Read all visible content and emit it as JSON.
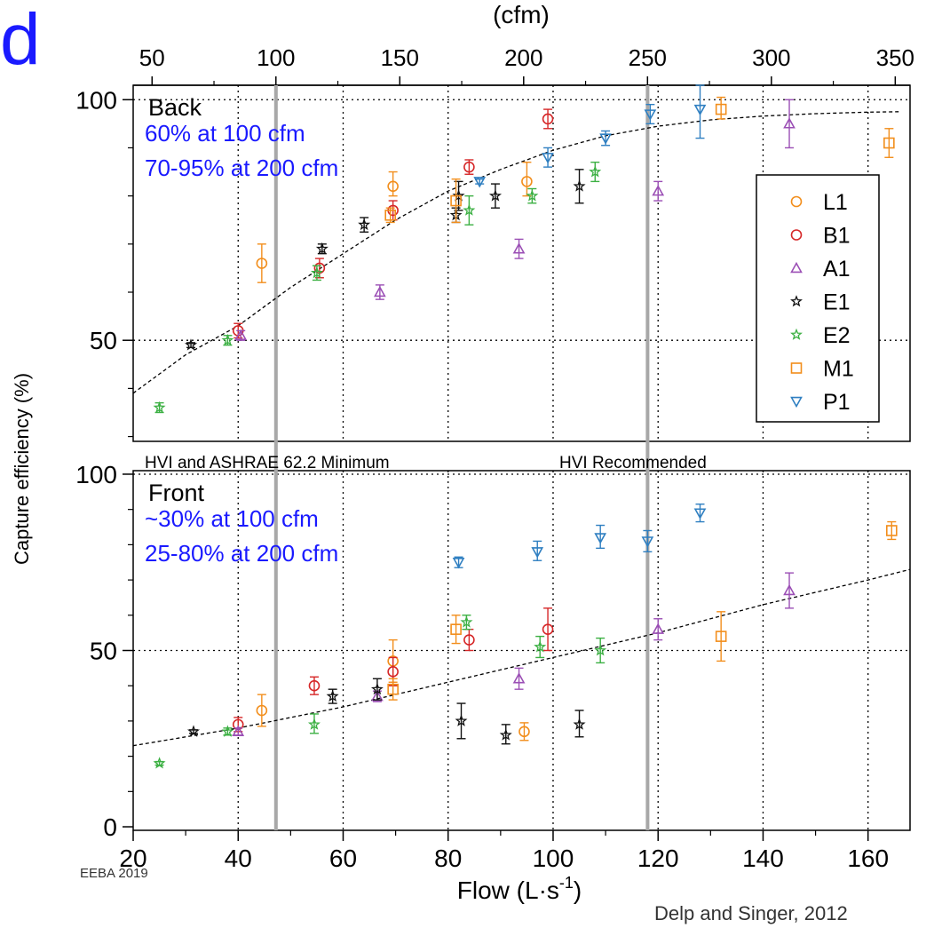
{
  "slide": {
    "letter": "d",
    "credit_left": "EEBA 2019",
    "credit_right": "Delp and Singer, 2012"
  },
  "chart_data": {
    "type": "scatter",
    "top_axis_label": "(cfm)",
    "top_ticks": [
      "50",
      "100",
      "150",
      "200",
      "250",
      "300",
      "350"
    ],
    "top_tick_values": [
      50,
      100,
      150,
      200,
      250,
      300,
      350
    ],
    "xlabel_main": "Flow (L",
    "xlabel_dot": "·",
    "xlabel_s": "s",
    "xlabel_exp": "-1",
    "xlabel_close": ")",
    "ylabel": "Capture efficiency (%)",
    "x_ticks": [
      "20",
      "40",
      "60",
      "80",
      "100",
      "120",
      "140",
      "160"
    ],
    "x_tick_values": [
      20,
      40,
      60,
      80,
      100,
      120,
      140,
      160
    ],
    "xlim": [
      20,
      168
    ],
    "vlines": [
      {
        "x": 47.2,
        "label": "HVI and ASHRAE 62.2 Minimum"
      },
      {
        "x": 118,
        "label": "HVI Recommended"
      }
    ],
    "colors": {
      "L1": "#f28e1c",
      "B1": "#d62728",
      "A1": "#9b4fb5",
      "E1": "#111111",
      "E2": "#3cb043",
      "M1": "#f28e1c",
      "P1": "#2f7fc1"
    },
    "legend": [
      {
        "name": "L1",
        "marker": "circle"
      },
      {
        "name": "B1",
        "marker": "circle"
      },
      {
        "name": "A1",
        "marker": "triangle-up"
      },
      {
        "name": "E1",
        "marker": "star"
      },
      {
        "name": "E2",
        "marker": "star"
      },
      {
        "name": "M1",
        "marker": "square"
      },
      {
        "name": "P1",
        "marker": "triangle-down"
      }
    ],
    "legend_position": "right",
    "panels": [
      {
        "title": "Back",
        "notes": [
          "60% at 100 cfm",
          "70-95% at 200 cfm"
        ],
        "y_ticks": [
          "50",
          "100"
        ],
        "y_tick_values": [
          50,
          100
        ],
        "ylim": [
          29,
          103
        ],
        "fit": [
          [
            20,
            39
          ],
          [
            30,
            47
          ],
          [
            40,
            53
          ],
          [
            50,
            61
          ],
          [
            60,
            68
          ],
          [
            70,
            75
          ],
          [
            80,
            81
          ],
          [
            90,
            85.5
          ],
          [
            100,
            89.5
          ],
          [
            110,
            92.5
          ],
          [
            120,
            94.5
          ],
          [
            130,
            95.8
          ],
          [
            140,
            96.6
          ],
          [
            150,
            97.1
          ],
          [
            160,
            97.4
          ],
          [
            166,
            97.5
          ]
        ],
        "points": [
          {
            "s": "L1",
            "x": 44.5,
            "y": 66,
            "lo": 62,
            "hi": 70
          },
          {
            "s": "L1",
            "x": 69.5,
            "y": 82,
            "lo": 80,
            "hi": 85
          },
          {
            "s": "L1",
            "x": 95,
            "y": 83,
            "lo": 80,
            "hi": 87
          },
          {
            "s": "B1",
            "x": 40,
            "y": 52,
            "lo": 50.5,
            "hi": 53.5
          },
          {
            "s": "B1",
            "x": 55.5,
            "y": 65,
            "lo": 63,
            "hi": 67
          },
          {
            "s": "B1",
            "x": 69.5,
            "y": 77,
            "lo": 75,
            "hi": 79
          },
          {
            "s": "B1",
            "x": 84,
            "y": 86,
            "lo": 84.5,
            "hi": 87.5
          },
          {
            "s": "B1",
            "x": 99,
            "y": 96,
            "lo": 94,
            "hi": 98
          },
          {
            "s": "A1",
            "x": 40.5,
            "y": 51,
            "lo": 50,
            "hi": 52
          },
          {
            "s": "A1",
            "x": 67,
            "y": 60,
            "lo": 58.5,
            "hi": 61.5
          },
          {
            "s": "A1",
            "x": 93.5,
            "y": 69,
            "lo": 67,
            "hi": 71
          },
          {
            "s": "A1",
            "x": 120,
            "y": 81,
            "lo": 79,
            "hi": 83
          },
          {
            "s": "A1",
            "x": 145,
            "y": 95,
            "lo": 90,
            "hi": 100
          },
          {
            "s": "E1",
            "x": 31,
            "y": 49,
            "lo": 48.5,
            "hi": 49.5
          },
          {
            "s": "E1",
            "x": 56,
            "y": 69,
            "lo": 68,
            "hi": 70
          },
          {
            "s": "E1",
            "x": 64,
            "y": 74,
            "lo": 72.5,
            "hi": 75.5
          },
          {
            "s": "E1",
            "x": 81.5,
            "y": 76,
            "lo": 74.5,
            "hi": 77.5
          },
          {
            "s": "E1",
            "x": 82,
            "y": 80,
            "lo": 77,
            "hi": 83
          },
          {
            "s": "E1",
            "x": 89,
            "y": 80,
            "lo": 77.5,
            "hi": 82.5
          },
          {
            "s": "E1",
            "x": 105,
            "y": 82,
            "lo": 78.5,
            "hi": 85.5
          },
          {
            "s": "E2",
            "x": 25,
            "y": 36,
            "lo": 35,
            "hi": 37
          },
          {
            "s": "E2",
            "x": 38,
            "y": 50,
            "lo": 49,
            "hi": 51
          },
          {
            "s": "E2",
            "x": 55,
            "y": 64,
            "lo": 62.5,
            "hi": 65.5
          },
          {
            "s": "E2",
            "x": 84,
            "y": 77,
            "lo": 74,
            "hi": 80
          },
          {
            "s": "E2",
            "x": 96,
            "y": 80,
            "lo": 78.5,
            "hi": 81.5
          },
          {
            "s": "E2",
            "x": 108,
            "y": 85,
            "lo": 83,
            "hi": 87
          },
          {
            "s": "M1",
            "x": 69,
            "y": 76,
            "lo": 74.5,
            "hi": 77.5
          },
          {
            "s": "M1",
            "x": 81.5,
            "y": 79,
            "lo": 74.5,
            "hi": 83.5
          },
          {
            "s": "M1",
            "x": 132,
            "y": 98,
            "lo": 96,
            "hi": 100.5
          },
          {
            "s": "M1",
            "x": 164,
            "y": 91,
            "lo": 88,
            "hi": 94
          },
          {
            "s": "P1",
            "x": 86,
            "y": 83,
            "lo": 82.5,
            "hi": 83.5
          },
          {
            "s": "P1",
            "x": 99,
            "y": 88,
            "lo": 86,
            "hi": 90
          },
          {
            "s": "P1",
            "x": 110,
            "y": 92,
            "lo": 90.5,
            "hi": 93.5
          },
          {
            "s": "P1",
            "x": 118.5,
            "y": 97,
            "lo": 95,
            "hi": 99
          },
          {
            "s": "P1",
            "x": 128,
            "y": 98,
            "lo": 92,
            "hi": 103
          }
        ]
      },
      {
        "title": "Front",
        "notes": [
          "~30% at 100 cfm",
          "25-80% at 200 cfm"
        ],
        "y_ticks": [
          "0",
          "50",
          "100"
        ],
        "y_tick_values": [
          0,
          50,
          100
        ],
        "ylim": [
          -1,
          101
        ],
        "fit": [
          [
            20,
            23
          ],
          [
            40,
            28
          ],
          [
            60,
            34
          ],
          [
            80,
            41
          ],
          [
            100,
            48
          ],
          [
            120,
            55
          ],
          [
            140,
            63
          ],
          [
            160,
            70
          ],
          [
            168,
            73
          ]
        ],
        "points": [
          {
            "s": "L1",
            "x": 44.5,
            "y": 33,
            "lo": 28.5,
            "hi": 37.5
          },
          {
            "s": "L1",
            "x": 69.5,
            "y": 47,
            "lo": 41,
            "hi": 53
          },
          {
            "s": "L1",
            "x": 94.5,
            "y": 27,
            "lo": 24.5,
            "hi": 29.5
          },
          {
            "s": "B1",
            "x": 40,
            "y": 29,
            "lo": 27,
            "hi": 31
          },
          {
            "s": "B1",
            "x": 54.5,
            "y": 40,
            "lo": 37.5,
            "hi": 42.5
          },
          {
            "s": "B1",
            "x": 69.5,
            "y": 44,
            "lo": 40,
            "hi": 48
          },
          {
            "s": "B1",
            "x": 84,
            "y": 53,
            "lo": 50,
            "hi": 56
          },
          {
            "s": "B1",
            "x": 99,
            "y": 56,
            "lo": 50,
            "hi": 62
          },
          {
            "s": "A1",
            "x": 40,
            "y": 27,
            "lo": 26,
            "hi": 28
          },
          {
            "s": "A1",
            "x": 66.5,
            "y": 37,
            "lo": 35.5,
            "hi": 38.5
          },
          {
            "s": "A1",
            "x": 93.5,
            "y": 42,
            "lo": 39,
            "hi": 45
          },
          {
            "s": "A1",
            "x": 120,
            "y": 56,
            "lo": 53,
            "hi": 59
          },
          {
            "s": "A1",
            "x": 145,
            "y": 67,
            "lo": 62,
            "hi": 72
          },
          {
            "s": "E1",
            "x": 31.5,
            "y": 27,
            "lo": 26.5,
            "hi": 27.5
          },
          {
            "s": "E1",
            "x": 58,
            "y": 37,
            "lo": 35,
            "hi": 39
          },
          {
            "s": "E1",
            "x": 66.5,
            "y": 39,
            "lo": 36,
            "hi": 42
          },
          {
            "s": "E1",
            "x": 82.5,
            "y": 30,
            "lo": 25,
            "hi": 35
          },
          {
            "s": "E1",
            "x": 91,
            "y": 26,
            "lo": 23.5,
            "hi": 29
          },
          {
            "s": "E1",
            "x": 105,
            "y": 29,
            "lo": 25.5,
            "hi": 33
          },
          {
            "s": "E2",
            "x": 25,
            "y": 18,
            "lo": 17.5,
            "hi": 18.5
          },
          {
            "s": "E2",
            "x": 38,
            "y": 27,
            "lo": 26,
            "hi": 28
          },
          {
            "s": "E2",
            "x": 54.5,
            "y": 29,
            "lo": 26.5,
            "hi": 32
          },
          {
            "s": "E2",
            "x": 83.5,
            "y": 58,
            "lo": 56,
            "hi": 60
          },
          {
            "s": "E2",
            "x": 97.5,
            "y": 51,
            "lo": 48,
            "hi": 54
          },
          {
            "s": "E2",
            "x": 109,
            "y": 50,
            "lo": 46.5,
            "hi": 53.5
          },
          {
            "s": "M1",
            "x": 69.5,
            "y": 39,
            "lo": 36,
            "hi": 42
          },
          {
            "s": "M1",
            "x": 81.5,
            "y": 56,
            "lo": 52,
            "hi": 60
          },
          {
            "s": "M1",
            "x": 132,
            "y": 54,
            "lo": 47,
            "hi": 61
          },
          {
            "s": "M1",
            "x": 164.5,
            "y": 84,
            "lo": 81.5,
            "hi": 86.5
          },
          {
            "s": "P1",
            "x": 82,
            "y": 75,
            "lo": 73.5,
            "hi": 76.5
          },
          {
            "s": "P1",
            "x": 97,
            "y": 78,
            "lo": 75.5,
            "hi": 81
          },
          {
            "s": "P1",
            "x": 109,
            "y": 82,
            "lo": 79,
            "hi": 85.5
          },
          {
            "s": "P1",
            "x": 118,
            "y": 81,
            "lo": 78,
            "hi": 84
          },
          {
            "s": "P1",
            "x": 128,
            "y": 89,
            "lo": 86.5,
            "hi": 91.5
          }
        ]
      }
    ]
  }
}
